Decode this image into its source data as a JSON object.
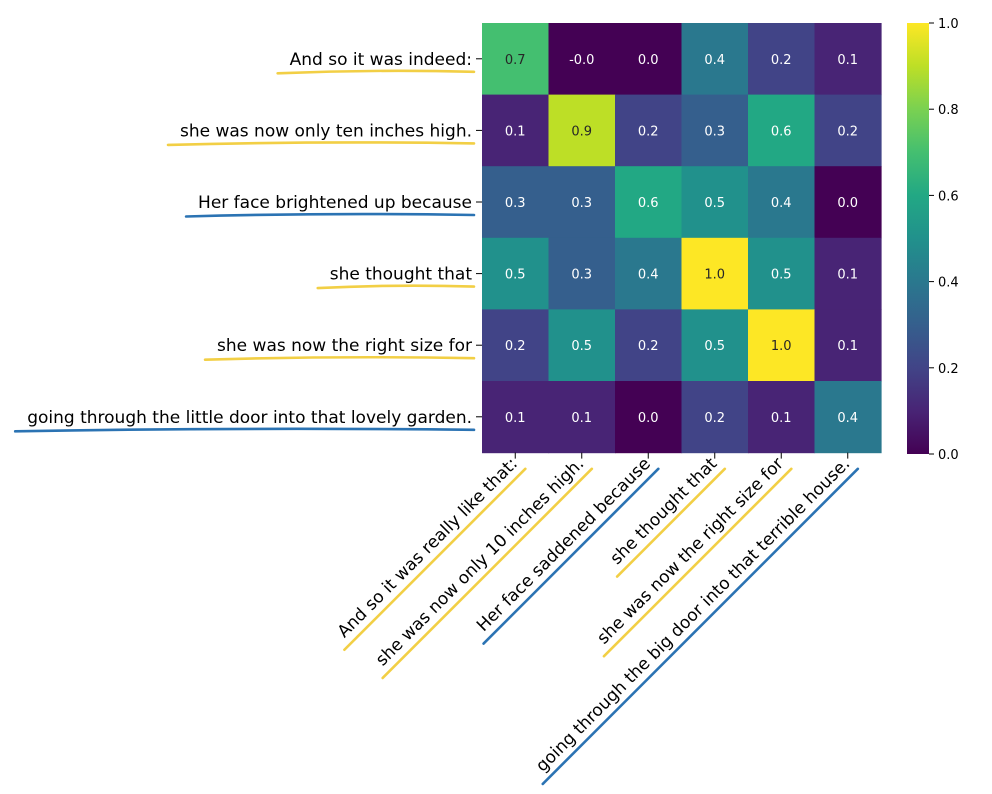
{
  "chart_data": {
    "type": "heatmap",
    "row_labels": [
      "And so it was indeed:",
      "she was now only ten inches high.",
      "Her face brightened up because",
      "she thought that",
      "she was now the right size for",
      "going through the little door into that lovely garden."
    ],
    "col_labels": [
      "And so it was really like that:",
      "she was now only 10 inches high.",
      "Her face saddened because",
      "she thought that",
      "she was now the right size for",
      "going through the big door into that terrible house."
    ],
    "row_underline_colors": [
      "#f2cf45",
      "#f2cf45",
      "#2b73b3",
      "#f2cf45",
      "#f2cf45",
      "#2b73b3"
    ],
    "col_underline_colors": [
      "#f2cf45",
      "#f2cf45",
      "#2b73b3",
      "#f2cf45",
      "#f2cf45",
      "#2b73b3"
    ],
    "values": [
      [
        0.7,
        -0.0,
        0.0,
        0.4,
        0.2,
        0.1
      ],
      [
        0.1,
        0.9,
        0.2,
        0.3,
        0.6,
        0.2
      ],
      [
        0.3,
        0.3,
        0.6,
        0.5,
        0.4,
        0.0
      ],
      [
        0.5,
        0.3,
        0.4,
        1.0,
        0.5,
        0.1
      ],
      [
        0.2,
        0.5,
        0.2,
        0.5,
        1.0,
        0.1
      ],
      [
        0.1,
        0.1,
        0.0,
        0.2,
        0.1,
        0.4
      ]
    ],
    "cell_labels": [
      [
        "0.7",
        "-0.0",
        "0.0",
        "0.4",
        "0.2",
        "0.1"
      ],
      [
        "0.1",
        "0.9",
        "0.2",
        "0.3",
        "0.6",
        "0.2"
      ],
      [
        "0.3",
        "0.3",
        "0.6",
        "0.5",
        "0.4",
        "0.0"
      ],
      [
        "0.5",
        "0.3",
        "0.4",
        "1.0",
        "0.5",
        "0.1"
      ],
      [
        "0.2",
        "0.5",
        "0.2",
        "0.5",
        "1.0",
        "0.1"
      ],
      [
        "0.1",
        "0.1",
        "0.0",
        "0.2",
        "0.1",
        "0.4"
      ]
    ],
    "colormap": "viridis",
    "vmin": 0.0,
    "vmax": 1.0,
    "colorbar_ticks": [
      "0.0",
      "0.2",
      "0.4",
      "0.6",
      "0.8",
      "1.0"
    ],
    "colorbar_tick_values": [
      0.0,
      0.2,
      0.4,
      0.6,
      0.8,
      1.0
    ]
  }
}
